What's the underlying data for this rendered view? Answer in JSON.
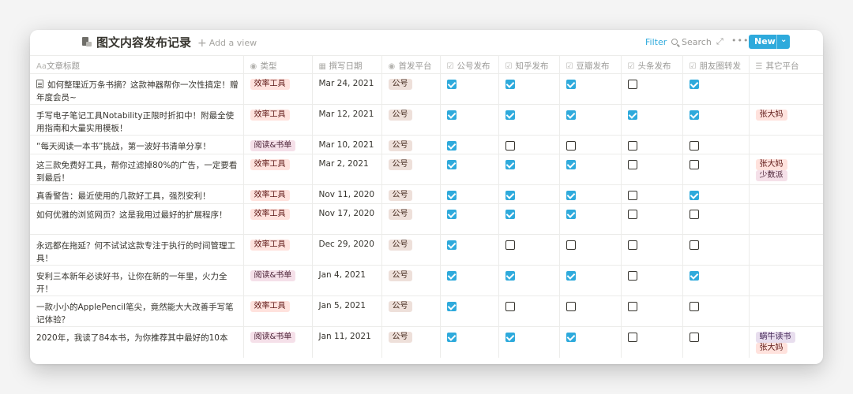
{
  "header": {
    "title": "图文内容发布记录",
    "add_view": "Add a view",
    "filter": "Filter",
    "search": "Search",
    "new_button": "New"
  },
  "columns": [
    {
      "label": "文章标题",
      "icon": "Aa"
    },
    {
      "label": "类型",
      "icon": "select-icon"
    },
    {
      "label": "撰写日期",
      "icon": "calendar-icon"
    },
    {
      "label": "首发平台",
      "icon": "select-icon"
    },
    {
      "label": "公号发布",
      "icon": "checkbox-icon"
    },
    {
      "label": "知乎发布",
      "icon": "checkbox-icon"
    },
    {
      "label": "豆瓣发布",
      "icon": "checkbox-icon"
    },
    {
      "label": "头条发布",
      "icon": "checkbox-icon"
    },
    {
      "label": "朋友圈转发",
      "icon": "checkbox-icon"
    },
    {
      "label": "其它平台",
      "icon": "list-icon"
    }
  ],
  "colors": {
    "accent": "#2eaadc",
    "tag_red": "#ffe2dd",
    "tag_pink": "#f5e0e9",
    "tag_brown": "#eee0da",
    "tag_purple": "#e8deee"
  },
  "rows": [
    {
      "title": "如何整理近万条书摘？这款神器帮你一次性搞定！赠年度会员~",
      "has_doc_icon": true,
      "type": "效率工具",
      "date": "Mar 24, 2021",
      "platform": "公号",
      "checks": [
        true,
        true,
        true,
        false,
        true
      ],
      "others": []
    },
    {
      "title": "手写电子笔记工具Notability正限时折扣中！附最全使用指南和大量实用模板！",
      "type": "效率工具",
      "date": "Mar 12, 2021",
      "platform": "公号",
      "checks": [
        true,
        true,
        true,
        true,
        true
      ],
      "others": [
        "张大妈"
      ]
    },
    {
      "title": "“每天阅读一本书”挑战，第一波好书清单分享！",
      "type": "阅读&书单",
      "date": "Mar 10, 2021",
      "platform": "公号",
      "checks": [
        true,
        false,
        false,
        false,
        false
      ],
      "others": []
    },
    {
      "title": "这三款免费好工具，帮你过滤掉80%的广告，一定要看到最后！",
      "type": "效率工具",
      "date": "Mar 2, 2021",
      "platform": "公号",
      "checks": [
        true,
        true,
        true,
        false,
        false
      ],
      "others": [
        "张大妈",
        "少数派"
      ]
    },
    {
      "title": "真香警告：最近使用的几款好工具，强烈安利！",
      "type": "效率工具",
      "date": "Nov 11, 2020",
      "platform": "公号",
      "checks": [
        true,
        true,
        true,
        false,
        true
      ],
      "others": []
    },
    {
      "title": "如何优雅的浏览网页？这是我用过最好的扩展程序！",
      "type": "效率工具",
      "date": "Nov 17, 2020",
      "platform": "公号",
      "checks": [
        true,
        true,
        true,
        false,
        false
      ],
      "others": []
    },
    {
      "title": "永远都在拖延？何不试试这款专注于执行的时间管理工具！",
      "type": "效率工具",
      "date": "Dec 29, 2020",
      "platform": "公号",
      "checks": [
        true,
        false,
        false,
        false,
        false
      ],
      "others": []
    },
    {
      "title": "安利三本新年必读好书，让你在新的一年里，火力全开！",
      "type": "阅读&书单",
      "date": "Jan 4, 2021",
      "platform": "公号",
      "checks": [
        true,
        true,
        true,
        false,
        true
      ],
      "others": []
    },
    {
      "title": "一款小小的ApplePencil笔尖，竟然能大大改善手写笔记体验？",
      "type": "效率工具",
      "date": "Jan 5, 2021",
      "platform": "公号",
      "checks": [
        true,
        false,
        false,
        false,
        false
      ],
      "others": []
    },
    {
      "title": "2020年，我读了84本书，为你推荐其中最好的10本",
      "type": "阅读&书单",
      "date": "Jan 11, 2021",
      "platform": "公号",
      "checks": [
        true,
        true,
        true,
        false,
        false
      ],
      "others": [
        "蜗牛读书",
        "张大妈"
      ]
    }
  ]
}
